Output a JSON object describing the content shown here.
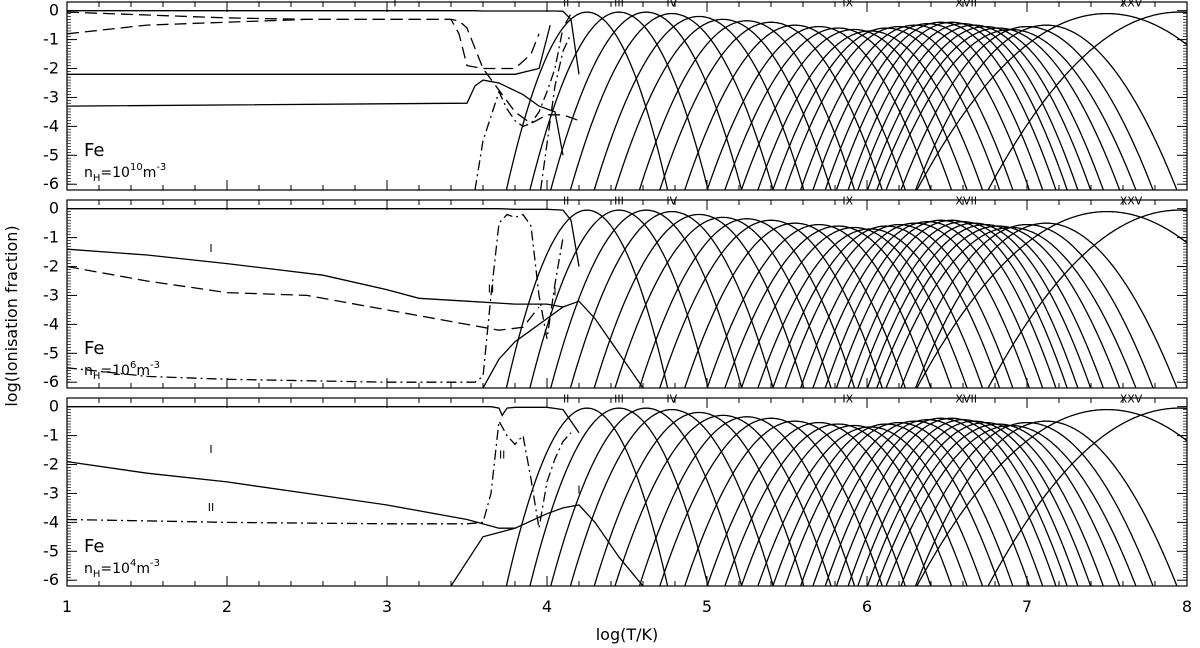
{
  "chart_data": {
    "type": "line",
    "xlabel": "log(T/K)",
    "ylabel": "log(Ionisation fraction)",
    "xlim": [
      1,
      8
    ],
    "ylim": [
      -6.2,
      0.3
    ],
    "x_ticks": [
      "1",
      "2",
      "3",
      "4",
      "5",
      "6",
      "7",
      "8"
    ],
    "y_ticks": [
      "0",
      "-1",
      "-2",
      "-3",
      "-4",
      "-5",
      "-6"
    ],
    "grid": false,
    "panels": [
      {
        "element": "Fe",
        "density_base": "n",
        "density_sub": "H",
        "density_mid": "=10",
        "density_exp": "10",
        "density_unit": "m",
        "density_unit_exp": "-3",
        "ion_labels": [
          {
            "text": "I",
            "x": 3.05,
            "y": 0.15
          },
          {
            "text": "II",
            "x": 4.12,
            "y": 0.15
          },
          {
            "text": "III",
            "x": 4.45,
            "y": 0.15
          },
          {
            "text": "IV",
            "x": 4.78,
            "y": 0.15
          },
          {
            "text": "IX",
            "x": 5.88,
            "y": 0.15
          },
          {
            "text": "XVII",
            "x": 6.62,
            "y": 0.15
          },
          {
            "text": "XXV",
            "x": 7.65,
            "y": 0.15
          }
        ],
        "series": [
          {
            "style": "solid",
            "x": [
              1,
              3.5,
              3.55,
              3.6,
              3.8,
              3.95,
              4.0,
              4.05,
              4.1,
              4.15,
              4.2
            ],
            "y": [
              0,
              0,
              0,
              -0.01,
              -0.01,
              -0.01,
              -0.01,
              -0.01,
              -0.02,
              -0.3,
              -2.2
            ]
          },
          {
            "style": "solid",
            "x": [
              1,
              3.55,
              3.6,
              3.8,
              3.95,
              4.02
            ],
            "y": [
              -2.2,
              -2.2,
              -2.2,
              -2.2,
              -2.0,
              -0.5
            ]
          },
          {
            "style": "solid",
            "x": [
              1,
              3.5,
              3.55,
              3.6,
              3.7,
              3.85,
              3.95,
              4.05,
              4.1
            ],
            "y": [
              -3.3,
              -3.2,
              -2.6,
              -2.4,
              -2.5,
              -2.9,
              -3.3,
              -3.5,
              -5.0
            ]
          },
          {
            "style": "dashed",
            "x": [
              1,
              1.5,
              2.0,
              2.5,
              3.0,
              3.4,
              3.45,
              3.5,
              3.6,
              3.8,
              3.9,
              3.95
            ],
            "y": [
              -0.05,
              -0.15,
              -0.25,
              -0.3,
              -0.3,
              -0.3,
              -0.8,
              -1.9,
              -2.0,
              -2.0,
              -1.5,
              -0.8
            ]
          },
          {
            "style": "dashed",
            "x": [
              1,
              1.5,
              2.0,
              2.5,
              3.0,
              3.4,
              3.45,
              3.5,
              3.6,
              3.8,
              3.9,
              4.0,
              4.1,
              4.2
            ],
            "y": [
              -0.8,
              -0.5,
              -0.4,
              -0.3,
              -0.3,
              -0.3,
              -0.35,
              -0.6,
              -2.0,
              -3.5,
              -3.9,
              -3.6,
              -3.6,
              -3.8
            ]
          },
          {
            "style": "dashdot",
            "x": [
              3.55,
              3.6,
              3.7,
              3.75,
              3.8,
              3.85,
              3.9,
              3.95,
              4.0,
              4.05,
              4.1,
              4.15
            ],
            "y": [
              -6.2,
              -4.5,
              -2.8,
              -3.4,
              -3.8,
              -4.0,
              -3.9,
              -3.5,
              -2.8,
              -2.0,
              -0.6,
              -0.1
            ]
          },
          {
            "style": "dashdot",
            "x": [
              3.96,
              4.0,
              4.05,
              4.1,
              4.15
            ],
            "y": [
              -6.2,
              -4.6,
              -2.6,
              -1.4,
              -0.8
            ]
          }
        ]
      },
      {
        "element": "Fe",
        "density_base": "n",
        "density_sub": "H",
        "density_mid": "=10",
        "density_exp": "6",
        "density_unit": "m",
        "density_unit_exp": "-3",
        "ion_labels": [
          {
            "text": "I",
            "x": 1.9,
            "y": -1.5
          },
          {
            "text": "II",
            "x": 3.65,
            "y": -2.9
          },
          {
            "text": "I",
            "x": 4.05,
            "y": -3.0
          },
          {
            "text": "II",
            "x": 4.12,
            "y": 0.15
          },
          {
            "text": "III",
            "x": 4.45,
            "y": 0.15
          },
          {
            "text": "IV",
            "x": 4.78,
            "y": 0.15
          },
          {
            "text": "IX",
            "x": 5.88,
            "y": 0.15
          },
          {
            "text": "XVII",
            "x": 6.62,
            "y": 0.15
          },
          {
            "text": "XXV",
            "x": 7.65,
            "y": 0.15
          }
        ],
        "series": [
          {
            "style": "solid",
            "x": [
              1,
              3.6,
              3.7,
              3.8,
              3.9,
              4.0,
              4.1,
              4.15,
              4.2
            ],
            "y": [
              0,
              0,
              0,
              -0.02,
              -0.02,
              -0.02,
              -0.05,
              -0.4,
              -2.0
            ]
          },
          {
            "style": "solid",
            "x": [
              1,
              1.5,
              2.0,
              2.3,
              2.6,
              3.0,
              3.2,
              3.5,
              3.8,
              4.0,
              4.1
            ],
            "y": [
              -1.4,
              -1.6,
              -1.9,
              -2.1,
              -2.3,
              -2.8,
              -3.1,
              -3.2,
              -3.3,
              -3.3,
              -3.4
            ]
          },
          {
            "style": "dashed",
            "x": [
              1,
              1.5,
              2.0,
              2.5,
              3.0,
              3.5,
              3.7,
              3.85,
              3.95
            ],
            "y": [
              -2.0,
              -2.5,
              -2.9,
              -3.0,
              -3.5,
              -4.0,
              -4.2,
              -4.1,
              -3.4
            ]
          },
          {
            "style": "dashdot",
            "x": [
              1,
              1.5,
              2.0,
              3.0,
              3.55,
              3.6,
              3.65,
              3.7,
              3.75,
              3.8,
              3.85,
              3.9,
              3.95,
              4.0,
              4.05,
              4.1
            ],
            "y": [
              -5.5,
              -5.8,
              -5.9,
              -6.0,
              -6.0,
              -5.8,
              -3.0,
              -0.5,
              -0.2,
              -0.3,
              -0.2,
              -0.6,
              -3.0,
              -4.5,
              -2.6,
              -1.0
            ]
          },
          {
            "style": "solid",
            "x": [
              3.6,
              3.7,
              3.8,
              3.9,
              4.0,
              4.1,
              4.2,
              4.3,
              4.4,
              4.5,
              4.6
            ],
            "y": [
              -6.2,
              -5.2,
              -4.6,
              -4.2,
              -3.8,
              -3.4,
              -3.2,
              -3.8,
              -4.6,
              -5.4,
              -6.2
            ]
          }
        ]
      },
      {
        "element": "Fe",
        "density_base": "n",
        "density_sub": "H",
        "density_mid": "=10",
        "density_exp": "4",
        "density_unit": "m",
        "density_unit_exp": "-3",
        "ion_labels": [
          {
            "text": "I",
            "x": 1.9,
            "y": -1.6
          },
          {
            "text": "II",
            "x": 1.9,
            "y": -3.6
          },
          {
            "text": "II",
            "x": 3.72,
            "y": -1.8
          },
          {
            "text": "I",
            "x": 4.2,
            "y": -3.0
          },
          {
            "text": "II",
            "x": 4.12,
            "y": 0.15
          },
          {
            "text": "III",
            "x": 4.45,
            "y": 0.15
          },
          {
            "text": "IV",
            "x": 4.78,
            "y": 0.15
          },
          {
            "text": "IX",
            "x": 5.88,
            "y": 0.15
          },
          {
            "text": "XVII",
            "x": 6.62,
            "y": 0.15
          },
          {
            "text": "XXV",
            "x": 7.65,
            "y": 0.15
          }
        ],
        "series": [
          {
            "style": "solid",
            "x": [
              1,
              3.65,
              3.7,
              3.72,
              3.75,
              3.8,
              3.9,
              4.0,
              4.1,
              4.2
            ],
            "y": [
              0,
              0,
              -0.05,
              -0.3,
              -0.05,
              -0.02,
              -0.02,
              -0.02,
              -0.1,
              -0.9
            ]
          },
          {
            "style": "solid",
            "x": [
              1,
              1.5,
              2.0,
              2.5,
              3.0,
              3.5,
              3.7,
              3.8
            ],
            "y": [
              -1.9,
              -2.3,
              -2.6,
              -3.0,
              -3.4,
              -3.9,
              -4.2,
              -4.2
            ]
          },
          {
            "style": "dashdot",
            "x": [
              1,
              1.5,
              2.0,
              3.0,
              3.5,
              3.6,
              3.65,
              3.7,
              3.75,
              3.8,
              3.85,
              3.9,
              3.95,
              4.0,
              4.05,
              4.1,
              4.15
            ],
            "y": [
              -3.9,
              -3.95,
              -4.0,
              -4.05,
              -4.05,
              -4.0,
              -3.0,
              -0.5,
              -1.0,
              -1.3,
              -1.0,
              -2.5,
              -4.2,
              -2.6,
              -1.8,
              -1.2,
              -0.9
            ]
          },
          {
            "style": "solid",
            "x": [
              3.4,
              3.6,
              3.8,
              4.0,
              4.1,
              4.2,
              4.3,
              4.45,
              4.6
            ],
            "y": [
              -6.2,
              -4.5,
              -4.2,
              -3.7,
              -3.5,
              -3.4,
              -4.0,
              -5.2,
              -6.2
            ]
          }
        ]
      }
    ],
    "ionisation_peaks": {
      "note_visible": false,
      "centres": [
        4.25,
        4.45,
        4.62,
        4.78,
        4.95,
        5.1,
        5.25,
        5.4,
        5.55,
        5.7,
        5.82,
        5.92,
        6.02,
        6.12,
        6.2,
        6.3,
        6.38,
        6.46,
        6.53,
        6.6,
        6.67,
        6.74,
        6.82,
        6.9,
        7.0,
        7.12,
        7.5,
        7.95
      ],
      "peak_values": [
        -0.05,
        -0.05,
        -0.05,
        -0.1,
        -0.2,
        -0.3,
        -0.35,
        -0.4,
        -0.5,
        -0.55,
        -0.6,
        -0.65,
        -0.7,
        -0.6,
        -0.55,
        -0.5,
        -0.45,
        -0.4,
        -0.4,
        -0.45,
        -0.5,
        -0.55,
        -0.6,
        -0.65,
        -0.55,
        -0.5,
        -0.1,
        -0.05
      ],
      "widths": [
        0.38,
        0.42,
        0.45,
        0.48,
        0.5,
        0.52,
        0.52,
        0.54,
        0.54,
        0.55,
        0.56,
        0.56,
        0.56,
        0.56,
        0.56,
        0.56,
        0.56,
        0.56,
        0.56,
        0.56,
        0.57,
        0.58,
        0.6,
        0.62,
        0.62,
        0.64,
        0.9,
        0.9
      ]
    }
  }
}
